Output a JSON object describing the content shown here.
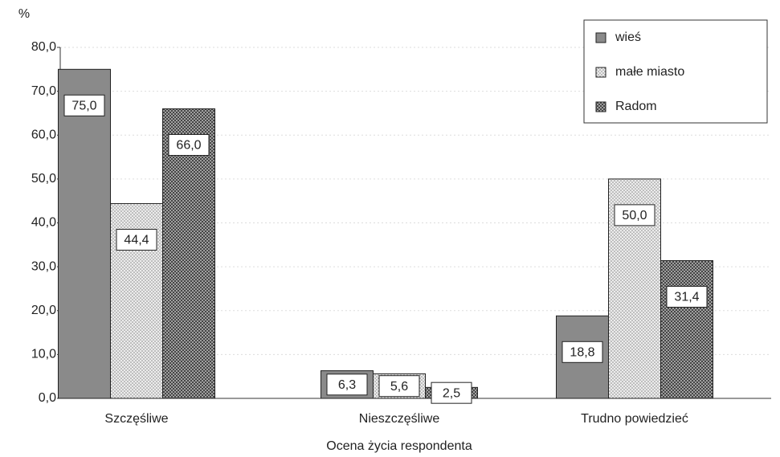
{
  "chart_data": {
    "type": "bar",
    "y_label": "%",
    "x_label": "Ocena życia respondenta",
    "categories": [
      "Szczęśliwe",
      "Nieszczęśliwe",
      "Trudno powiedzieć"
    ],
    "series": [
      {
        "name": "wieś",
        "color": "#8a8a8a",
        "pattern": "solid",
        "values": [
          75.0,
          6.3,
          18.8
        ],
        "value_labels": [
          "75,0",
          "6,3",
          "18,8"
        ]
      },
      {
        "name": "małe miasto",
        "color": "#e6e6e6",
        "pattern": "dots",
        "values": [
          44.4,
          5.6,
          50.0
        ],
        "value_labels": [
          "44,4",
          "5,6",
          "50,0"
        ]
      },
      {
        "name": "Radom",
        "color": "#9a9a9a",
        "pattern": "crosshatch",
        "values": [
          66.0,
          2.5,
          31.4
        ],
        "value_labels": [
          "66,0",
          "2,5",
          "31,4"
        ]
      }
    ],
    "ylim": [
      0,
      80
    ],
    "yticks": [
      {
        "value": 0,
        "label": "0,0"
      },
      {
        "value": 10,
        "label": "10,0"
      },
      {
        "value": 20,
        "label": "20,0"
      },
      {
        "value": 30,
        "label": "30,0"
      },
      {
        "value": 40,
        "label": "40,0"
      },
      {
        "value": 50,
        "label": "50,0"
      },
      {
        "value": 60,
        "label": "60,0"
      },
      {
        "value": 70,
        "label": "70,0"
      },
      {
        "value": 80,
        "label": "80,0"
      }
    ],
    "grid": true,
    "legend": "top-right"
  }
}
